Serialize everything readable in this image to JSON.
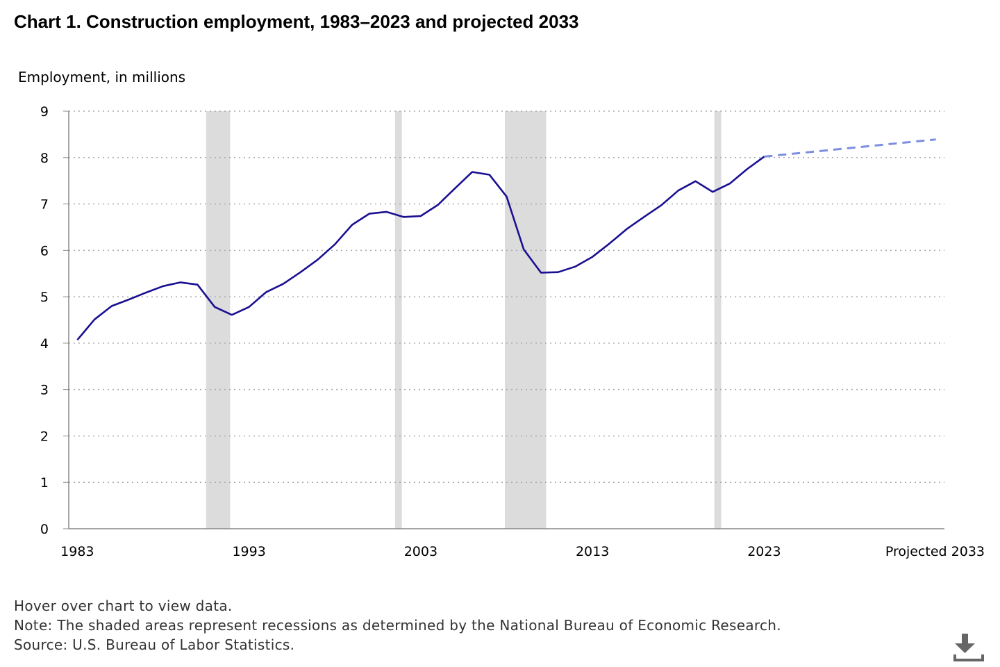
{
  "title": "Chart 1. Construction employment, 1983–2023 and projected 2033",
  "colors": {
    "line": "#1a1090",
    "projection": "#7b8ee0",
    "recession": "#dcdcdc",
    "grid": "#aaaaaa",
    "axis": "#888888"
  },
  "chart_data": {
    "type": "line",
    "title": "Chart 1. Construction employment, 1983–2023 and projected 2033",
    "ylabel": "Employment, in millions",
    "xlabel": "",
    "ylim": [
      0,
      9
    ],
    "yticks": [
      0,
      1,
      2,
      3,
      4,
      5,
      6,
      7,
      8,
      9
    ],
    "xticks": [
      {
        "year": 1983,
        "label": "1983"
      },
      {
        "year": 1993,
        "label": "1993"
      },
      {
        "year": 2003,
        "label": "2003"
      },
      {
        "year": 2013,
        "label": "2013"
      },
      {
        "year": 2023,
        "label": "2023"
      },
      {
        "year": 2033,
        "label": "Projected 2033"
      }
    ],
    "grid": "horizontal dotted",
    "recessions": [
      [
        1990.5,
        1991.9
      ],
      [
        2001.5,
        2001.9
      ],
      [
        2007.9,
        2010.3
      ],
      [
        2020.1,
        2020.5
      ]
    ],
    "series": [
      {
        "style": "solid",
        "x": [
          1983,
          1984,
          1985,
          1986,
          1987,
          1988,
          1989,
          1990,
          1991,
          1992,
          1993,
          1994,
          1995,
          1996,
          1997,
          1998,
          1999,
          2000,
          2001,
          2002,
          2003,
          2004,
          2005,
          2006,
          2007,
          2008,
          2009,
          2010,
          2011,
          2012,
          2013,
          2014,
          2015,
          2016,
          2017,
          2018,
          2019,
          2020,
          2021,
          2022,
          2023
        ],
        "y": [
          4.07,
          4.51,
          4.8,
          4.94,
          5.09,
          5.23,
          5.31,
          5.26,
          4.78,
          4.61,
          4.78,
          5.1,
          5.28,
          5.53,
          5.8,
          6.13,
          6.55,
          6.79,
          6.83,
          6.72,
          6.74,
          6.98,
          7.34,
          7.69,
          7.63,
          7.16,
          6.02,
          5.52,
          5.53,
          5.65,
          5.86,
          6.15,
          6.46,
          6.72,
          6.97,
          7.29,
          7.49,
          7.26,
          7.44,
          7.75,
          8.02
        ]
      },
      {
        "name": "Projected",
        "style": "dashed",
        "x": [
          2023,
          2033
        ],
        "y": [
          8.02,
          8.39
        ]
      }
    ]
  },
  "notes": {
    "hover": "Hover over chart to view data.",
    "note": "Note: The shaded areas represent recessions as determined by the National Bureau of Economic Research.",
    "source": "Source: U.S. Bureau of Labor Statistics."
  },
  "download_icon": "download-icon"
}
